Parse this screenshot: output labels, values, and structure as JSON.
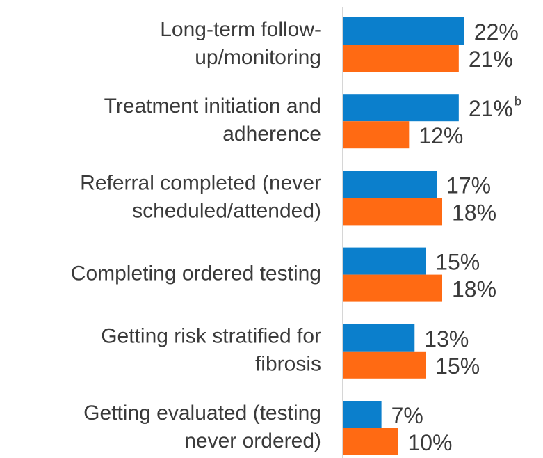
{
  "chart_data": {
    "type": "hbar",
    "categories": [
      [
        "Long-term follow-",
        "up/monitoring"
      ],
      [
        "Treatment initiation and",
        "adherence"
      ],
      [
        "Referral completed (never",
        "scheduled/attended)"
      ],
      [
        "Completing ordered testing"
      ],
      [
        "Getting risk stratified for",
        "fibrosis"
      ],
      [
        "Getting evaluated (testing",
        "never ordered)"
      ]
    ],
    "series": [
      {
        "color": "#0b7fcc",
        "values": [
          22,
          21,
          17,
          15,
          13,
          7
        ],
        "value_labels": [
          "22%",
          "21%",
          "17%",
          "15%",
          "13%",
          "7%"
        ]
      },
      {
        "color": "#ff6a13",
        "values": [
          21,
          12,
          18,
          18,
          15,
          10
        ],
        "value_labels": [
          "21%",
          "12%",
          "18%",
          "18%",
          "15%",
          "10%"
        ]
      }
    ],
    "annotations": [
      {
        "text": "b",
        "series": 0,
        "index": 1
      }
    ],
    "xlim": [
      0,
      36
    ]
  }
}
